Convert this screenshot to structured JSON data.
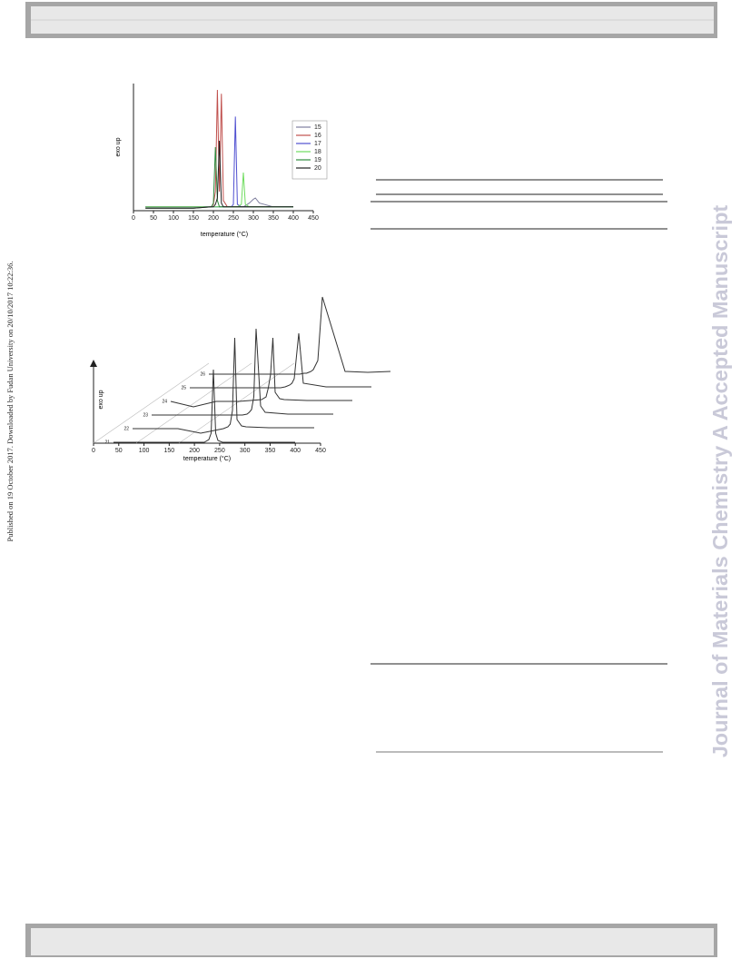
{
  "page": {
    "side_note": "Published on 19 October 2017. Downloaded by Fudan University on 20/10/2017 10:22:36.",
    "watermark": "Journal of Materials Chemistry A Accepted Manuscript"
  },
  "chart_data": [
    {
      "type": "line",
      "xlabel": "temperature (°C)",
      "ylabel": "exo up",
      "x": [
        30,
        150,
        195,
        200,
        205,
        210,
        215,
        220,
        225,
        235,
        245,
        250,
        255,
        260,
        270,
        275,
        280,
        290,
        300,
        305,
        315,
        350,
        400
      ],
      "xlim": [
        0,
        450
      ],
      "xticks": [
        0,
        50,
        100,
        150,
        200,
        250,
        300,
        350,
        400,
        450
      ],
      "ylim": [
        0,
        10
      ],
      "legend": "right",
      "series": [
        {
          "name": "15",
          "color": "#7f7f9f",
          "values": [
            0.3,
            0.3,
            0.3,
            0.3,
            0.3,
            0.3,
            0.3,
            0.3,
            0.3,
            0.3,
            0.3,
            0.3,
            0.3,
            0.3,
            0.3,
            0.3,
            0.4,
            0.6,
            0.9,
            1.0,
            0.6,
            0.3,
            0.3
          ]
        },
        {
          "name": "16",
          "color": "#c0504d",
          "values": [
            0.3,
            0.3,
            0.3,
            0.5,
            1.5,
            9.5,
            1.5,
            9.2,
            0.8,
            0.3,
            0.3,
            0.3,
            0.3,
            0.3,
            0.3,
            0.3,
            0.3,
            0.3,
            0.3,
            0.3,
            0.3,
            0.3,
            0.3
          ]
        },
        {
          "name": "17",
          "color": "#4f4fd0",
          "values": [
            0.3,
            0.3,
            0.3,
            0.3,
            0.3,
            0.3,
            0.3,
            0.3,
            0.3,
            0.3,
            0.3,
            0.5,
            7.4,
            0.5,
            0.3,
            0.3,
            0.3,
            0.3,
            0.3,
            0.3,
            0.3,
            0.3,
            0.3
          ]
        },
        {
          "name": "18",
          "color": "#6fdc5f",
          "values": [
            0.3,
            0.3,
            0.3,
            0.3,
            0.3,
            0.3,
            0.3,
            0.3,
            0.3,
            0.3,
            0.3,
            0.3,
            0.3,
            0.3,
            0.5,
            3.0,
            0.5,
            0.3,
            0.3,
            0.3,
            0.3,
            0.3,
            0.3
          ]
        },
        {
          "name": "19",
          "color": "#2e8b3e",
          "values": [
            0.2,
            0.2,
            0.3,
            0.6,
            5.0,
            0.8,
            0.3,
            0.3,
            0.3,
            0.3,
            0.3,
            0.3,
            0.3,
            0.3,
            0.3,
            0.3,
            0.3,
            0.3,
            0.3,
            0.3,
            0.3,
            0.3,
            0.3
          ]
        },
        {
          "name": "20",
          "color": "#222222",
          "values": [
            0.2,
            0.2,
            0.3,
            0.3,
            0.5,
            1.0,
            5.5,
            0.6,
            0.3,
            0.3,
            0.3,
            0.3,
            0.3,
            0.3,
            0.3,
            0.3,
            0.3,
            0.3,
            0.3,
            0.3,
            0.3,
            0.3,
            0.3
          ]
        }
      ]
    },
    {
      "type": "waterfall",
      "xlabel": "temperature (°C)",
      "ylabel": "exo up",
      "x": [
        0,
        50,
        100,
        150,
        200,
        210,
        215,
        220,
        225,
        230,
        240,
        250,
        300,
        350,
        400
      ],
      "xlim": [
        0,
        450
      ],
      "xticks": [
        0,
        50,
        100,
        150,
        200,
        250,
        300,
        350,
        400,
        450
      ],
      "ylim": [
        0,
        10
      ],
      "series": [
        {
          "name": "21",
          "color": "#333333",
          "values": [
            0,
            0,
            0,
            0,
            0,
            0.3,
            1,
            8,
            1,
            0.2,
            0,
            0,
            0,
            0,
            0
          ]
        },
        {
          "name": "22",
          "color": "#333333",
          "values": [
            0,
            0,
            0,
            -0.5,
            0,
            0.2,
            0.5,
            2,
            10,
            1,
            0.3,
            0.2,
            0.1,
            0.1,
            0.1
          ]
        },
        {
          "name": "23",
          "color": "#333333",
          "values": [
            0,
            0,
            0,
            0,
            0,
            0.1,
            0.3,
            0.6,
            2,
            9.5,
            1,
            0.3,
            0.1,
            0.1,
            0.1
          ]
        },
        {
          "name": "24",
          "color": "#333333",
          "values": [
            0,
            -0.6,
            0,
            0,
            0.2,
            0.5,
            1.5,
            3,
            7,
            1,
            0.3,
            0.2,
            0.1,
            0.1,
            0.1
          ]
        },
        {
          "name": "25",
          "color": "#333333",
          "values": [
            0,
            0,
            0,
            0,
            0,
            0.1,
            0.2,
            0.3,
            0.5,
            1,
            6,
            0.5,
            0.1,
            0.1,
            0.1
          ]
        },
        {
          "name": "26",
          "color": "#333333",
          "values": [
            0,
            0,
            0,
            0,
            0,
            0.1,
            0.1,
            0.2,
            0.3,
            0.5,
            1.5,
            8.5,
            0.3,
            0.2,
            0.3
          ]
        }
      ]
    }
  ]
}
